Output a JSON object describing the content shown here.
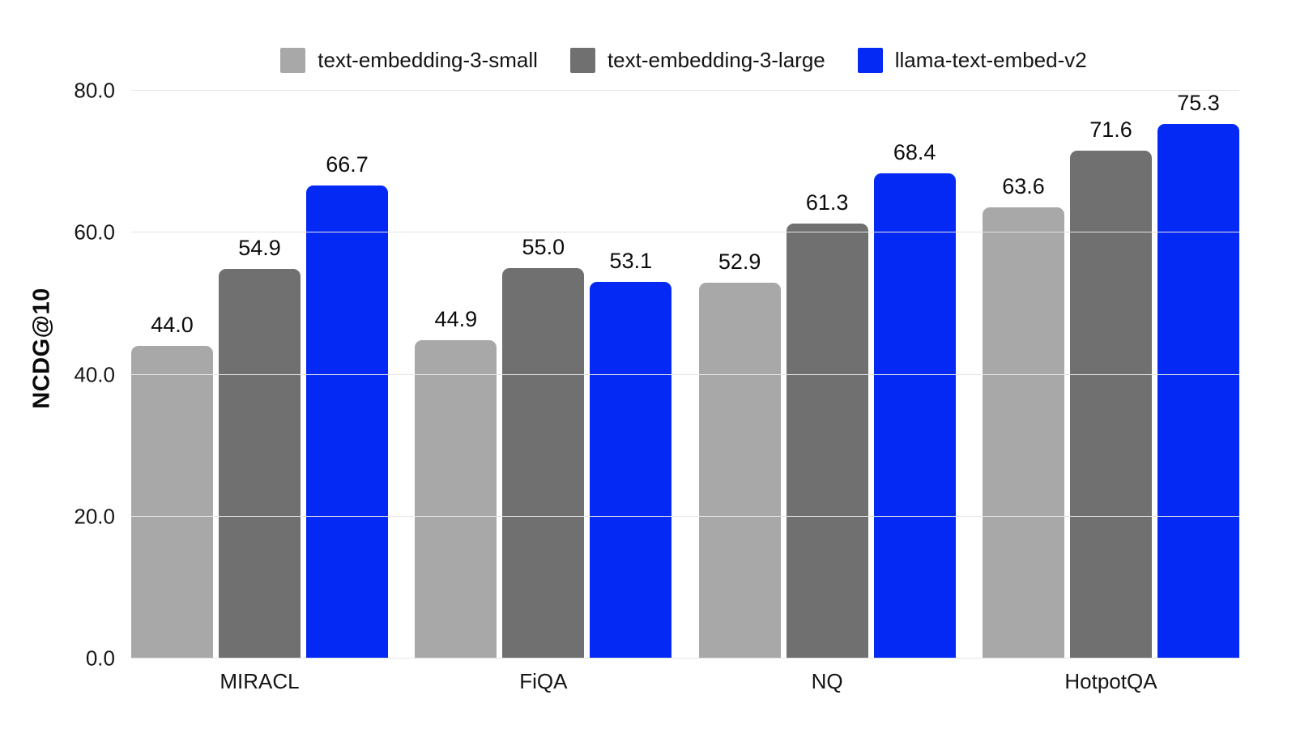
{
  "chart_data": {
    "type": "bar",
    "title": "",
    "xlabel": "",
    "ylabel": "NCDG@10",
    "ylim": [
      0,
      80
    ],
    "yticks": [
      {
        "label": "0.0",
        "value": 0
      },
      {
        "label": "20.0",
        "value": 20
      },
      {
        "label": "40.0",
        "value": 40
      },
      {
        "label": "60.0",
        "value": 60
      },
      {
        "label": "80.0",
        "value": 80
      }
    ],
    "categories": [
      "MIRACL",
      "FiQA",
      "NQ",
      "HotpotQA"
    ],
    "series": [
      {
        "name": "text-embedding-3-small",
        "color": "#a8a8a8",
        "values": [
          44.0,
          44.9,
          52.9,
          63.6
        ]
      },
      {
        "name": "text-embedding-3-large",
        "color": "#707070",
        "values": [
          54.9,
          55.0,
          61.3,
          71.6
        ]
      },
      {
        "name": "llama-text-embed-v2",
        "color": "#0529f5",
        "values": [
          66.7,
          53.1,
          68.4,
          75.3
        ]
      }
    ],
    "value_labels": true,
    "grid": "horizontal",
    "legend_position": "top"
  },
  "colors": {
    "background": "#ffffff",
    "gridline": "#e5e5e5",
    "text": "#111111"
  }
}
